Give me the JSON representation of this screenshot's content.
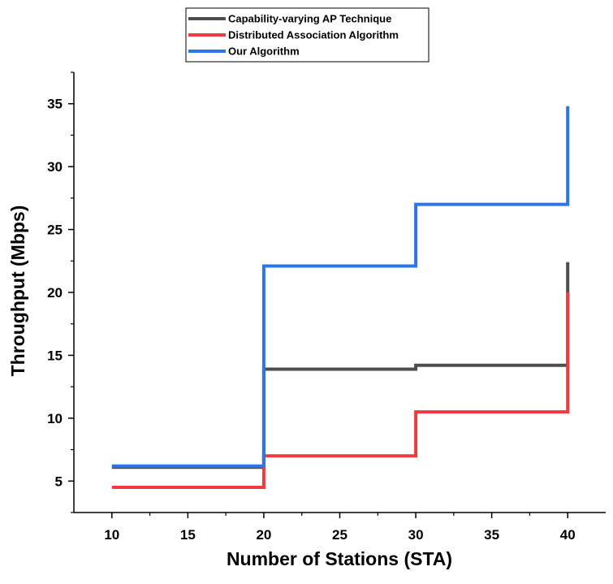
{
  "chart_data": {
    "type": "line",
    "step": "post",
    "xlabel": "Number of Stations (STA)",
    "ylabel": "Throughput (Mbps)",
    "xlim": [
      7.5,
      42.5
    ],
    "ylim": [
      2.5,
      37.5
    ],
    "xticks": [
      10,
      15,
      20,
      25,
      30,
      35,
      40
    ],
    "yticks": [
      5,
      10,
      15,
      20,
      25,
      30,
      35
    ],
    "grid": false,
    "legend_position": "top-center",
    "series": [
      {
        "name": "Capability-varying AP Technique",
        "color": "#4d4d4d",
        "points": [
          [
            10,
            6.1
          ],
          [
            20,
            6.1
          ],
          [
            20,
            13.9
          ],
          [
            30,
            13.9
          ],
          [
            30,
            14.2
          ],
          [
            40,
            14.2
          ],
          [
            40,
            22.4
          ]
        ]
      },
      {
        "name": "Distributed Association Algorithm",
        "color": "#ef3a3f",
        "points": [
          [
            10,
            4.5
          ],
          [
            20,
            4.5
          ],
          [
            20,
            7.0
          ],
          [
            30,
            7.0
          ],
          [
            30,
            10.5
          ],
          [
            40,
            10.5
          ],
          [
            40,
            20.0
          ]
        ]
      },
      {
        "name": "Our Algorithm",
        "color": "#2e75e6",
        "points": [
          [
            10,
            6.2
          ],
          [
            20,
            6.2
          ],
          [
            20,
            22.1
          ],
          [
            30,
            22.1
          ],
          [
            30,
            27.0
          ],
          [
            40,
            27.0
          ],
          [
            40,
            34.8
          ]
        ]
      }
    ]
  }
}
